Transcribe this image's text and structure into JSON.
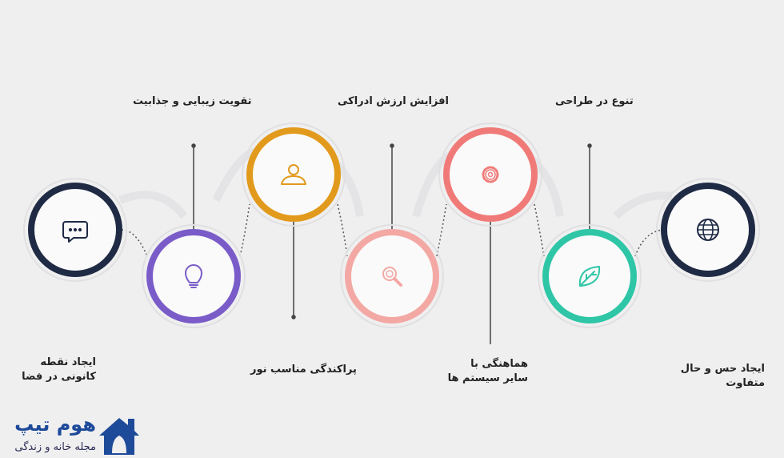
{
  "steps": [
    {
      "label": "ایجاد نقطه کانونی در فضا",
      "line1": "ایجاد نقطه",
      "line2": "کانونی در فضا",
      "icon": "chat-bubble-icon",
      "color": "#1f2a44"
    },
    {
      "label": "تقویت زیبایی و جذابیت",
      "icon": "lightbulb-icon",
      "color": "#7a5cc9"
    },
    {
      "label": "پراکندگی مناسب نور",
      "icon": "user-icon",
      "color": "#e29a1c"
    },
    {
      "label": "افزایش ارزش ادراکی",
      "icon": "search-icon",
      "color": "#f3a8a4"
    },
    {
      "label": "هماهنگی با سایر سیستم ها",
      "line1": "هماهنگی با",
      "line2": "سایر سیستم ها",
      "icon": "gear-icon",
      "color": "#f07a78"
    },
    {
      "label": "تنوع در طراحی",
      "icon": "leaf-icon",
      "color": "#2ec6a6"
    },
    {
      "label": "ایجاد حس و حال متفاوت",
      "line1": "ایجاد حس و حال",
      "line2": "متفاوت",
      "icon": "globe-icon",
      "color": "#1f2a44"
    }
  ],
  "logo": {
    "title": "هوم تیپ",
    "subtitle": "مجله خانه و زندگی",
    "color": "#1e4a9a"
  }
}
